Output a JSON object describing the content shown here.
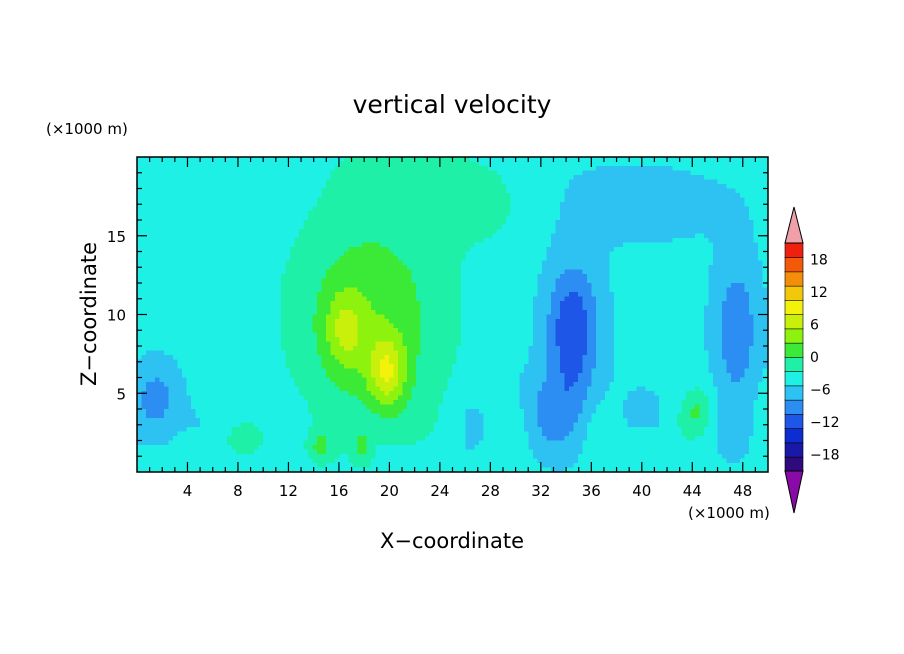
{
  "chart_data": {
    "type": "heatmap",
    "title": "vertical velocity",
    "xlabel": "X−coordinate",
    "ylabel": "Z−coordinate",
    "x_unit": "(×1000 m)",
    "z_unit": "(×1000 m)",
    "xlim": [
      0,
      50
    ],
    "ylim": [
      0,
      20
    ],
    "x_ticks": [
      4,
      8,
      12,
      16,
      20,
      24,
      28,
      32,
      36,
      40,
      44,
      48
    ],
    "x_tick_labels": [
      "4",
      "8",
      "12",
      "16",
      "20",
      "24",
      "28",
      "32",
      "36",
      "40",
      "44",
      "48"
    ],
    "y_ticks": [
      5,
      10,
      15
    ],
    "y_tick_labels": [
      "5",
      "10",
      "15"
    ],
    "colorbar": {
      "levels": [
        -21,
        -18,
        -15,
        -12,
        -9,
        -6,
        -3,
        0,
        3,
        6,
        9,
        12,
        15,
        18,
        21
      ],
      "tick_values": [
        -18,
        -12,
        -6,
        0,
        6,
        12,
        18
      ],
      "tick_labels": [
        "−18",
        "−12",
        "−6",
        "0",
        "6",
        "12",
        "18"
      ],
      "colors": [
        "#2e0a7c",
        "#1a18a6",
        "#0c2ed0",
        "#1e56e8",
        "#2c8ef2",
        "#2ec2f2",
        "#1ef0e6",
        "#1ef0a8",
        "#3aea36",
        "#8cf20e",
        "#c8f00a",
        "#f2f20a",
        "#f4c80a",
        "#f48e0a",
        "#f25a0a",
        "#f02010"
      ],
      "under_color": "#8a0aa8",
      "over_color": "#f0a0a8"
    }
  }
}
